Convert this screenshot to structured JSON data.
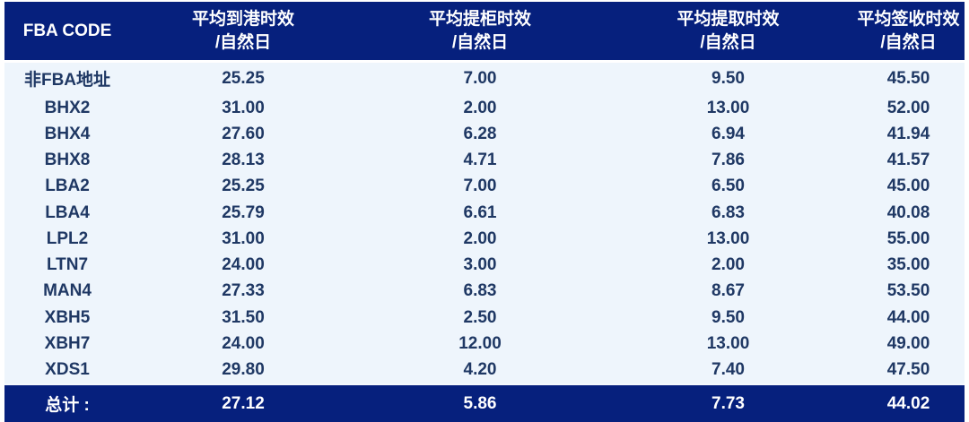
{
  "chart_data": {
    "type": "table",
    "columns": [
      {
        "line1": "FBA CODE",
        "line2": ""
      },
      {
        "line1": "平均到港时效",
        "line2": "/自然日"
      },
      {
        "line1": "平均提柜时效",
        "line2": "/自然日"
      },
      {
        "line1": "平均提取时效",
        "line2": "/自然日"
      },
      {
        "line1": "平均签收时效",
        "line2": "/自然日"
      }
    ],
    "rows": [
      [
        "非FBA地址",
        "25.25",
        "7.00",
        "9.50",
        "45.50"
      ],
      [
        "BHX2",
        "31.00",
        "2.00",
        "13.00",
        "52.00"
      ],
      [
        "BHX4",
        "27.60",
        "6.28",
        "6.94",
        "41.94"
      ],
      [
        "BHX8",
        "28.13",
        "4.71",
        "7.86",
        "41.57"
      ],
      [
        "LBA2",
        "25.25",
        "7.00",
        "6.50",
        "45.00"
      ],
      [
        "LBA4",
        "25.79",
        "6.61",
        "6.83",
        "40.08"
      ],
      [
        "LPL2",
        "31.00",
        "2.00",
        "13.00",
        "55.00"
      ],
      [
        "LTN7",
        "24.00",
        "3.00",
        "2.00",
        "35.00"
      ],
      [
        "MAN4",
        "27.33",
        "6.83",
        "8.67",
        "53.50"
      ],
      [
        "XBH5",
        "31.50",
        "2.50",
        "9.50",
        "44.00"
      ],
      [
        "XBH7",
        "24.00",
        "12.00",
        "13.00",
        "49.00"
      ],
      [
        "XDS1",
        "29.80",
        "4.20",
        "7.40",
        "47.50"
      ]
    ],
    "total_row": [
      "总计 :",
      "27.12",
      "5.86",
      "7.73",
      "44.02"
    ],
    "layout_hints": {
      "header_rows": 1,
      "grid": "off",
      "alignment": "center"
    }
  },
  "colors": {
    "header_bg": "#06207D",
    "header_text": "#FFFFFF",
    "row_bg": "#EEF5FC",
    "row_text": "#1F3864",
    "total_bg": "#06207D",
    "total_text": "#FFFFFF"
  }
}
